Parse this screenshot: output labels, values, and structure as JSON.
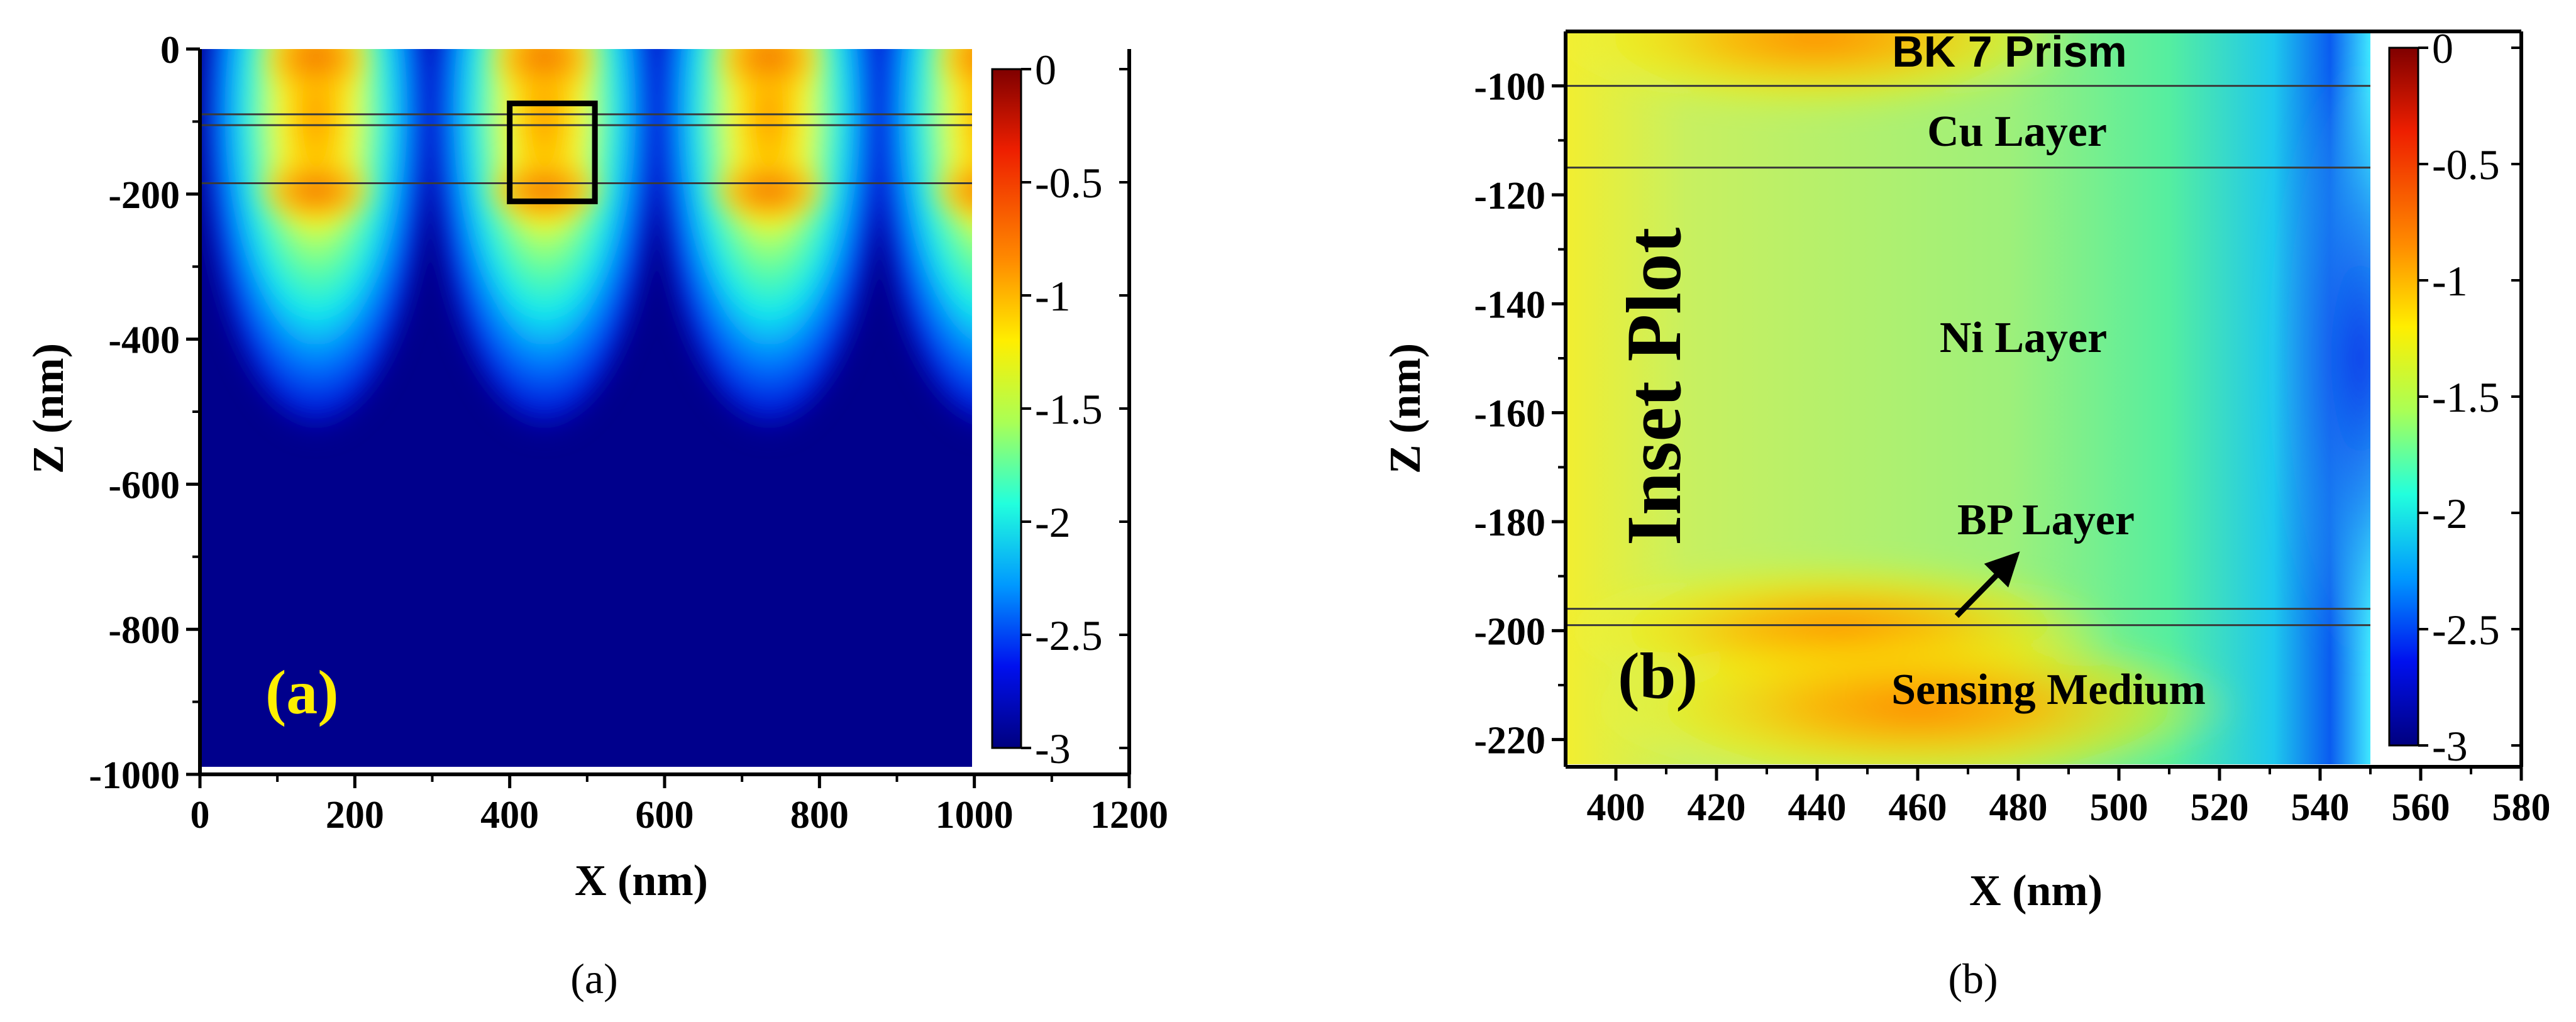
{
  "chart_data": [
    {
      "type": "heatmap",
      "panel": "a",
      "xlabel": "X (nm)",
      "ylabel": "Z (nm)",
      "xlim": [
        0,
        1200
      ],
      "ylim": [
        -1000,
        0
      ],
      "data_x_range": [
        0,
        1000
      ],
      "data_y_range": [
        -990,
        0
      ],
      "xticks": [
        "0",
        "200",
        "400",
        "600",
        "800",
        "1000",
        "1200"
      ],
      "xtick_values": [
        0,
        200,
        400,
        600,
        800,
        1000,
        1200
      ],
      "yticks": [
        "0",
        "-200",
        "-400",
        "-600",
        "-800",
        "-1000"
      ],
      "ytick_values": [
        0,
        -200,
        -400,
        -600,
        -800,
        -1000
      ],
      "colorbar": {
        "min": -3,
        "max": 0,
        "ticks": [
          "0",
          "-0.5",
          "-1",
          "-1.5",
          "-2",
          "-2.5",
          "-3"
        ],
        "tick_values": [
          0,
          -0.5,
          -1,
          -1.5,
          -2,
          -2.5,
          -3
        ]
      },
      "field_peaks_x": [
        150,
        445,
        735,
        1020
      ],
      "interface_lines_z": [
        -90,
        -105,
        -185
      ],
      "highlight_box": {
        "x": [
          400,
          510
        ],
        "z": [
          -210,
          -75
        ]
      },
      "panel_label": "(a)",
      "panel_label_color": "#ffee00",
      "caption": "(a)"
    },
    {
      "type": "heatmap",
      "panel": "b",
      "xlabel": "X (nm)",
      "ylabel": "Z (nm)",
      "xlim": [
        390,
        580
      ],
      "ylim": [
        -225,
        -90
      ],
      "data_x_range": [
        390,
        550
      ],
      "data_y_range": [
        -225,
        -90
      ],
      "xticks": [
        "400",
        "420",
        "440",
        "460",
        "480",
        "500",
        "520",
        "540",
        "560",
        "580"
      ],
      "xtick_values": [
        400,
        420,
        440,
        460,
        480,
        500,
        520,
        540,
        560,
        580
      ],
      "yticks": [
        "-100",
        "-120",
        "-140",
        "-160",
        "-180",
        "-200",
        "-220"
      ],
      "ytick_values": [
        -100,
        -120,
        -140,
        -160,
        -180,
        -200,
        -220
      ],
      "colorbar": {
        "min": -3,
        "max": 0,
        "ticks": [
          "0",
          "-0.5",
          "-1",
          "-1.5",
          "-2",
          "-2.5",
          "-3"
        ],
        "tick_values": [
          0,
          -0.5,
          -1,
          -1.5,
          -2,
          -2.5,
          -3
        ]
      },
      "interface_lines_z": [
        -100,
        -115,
        -196,
        -199
      ],
      "layer_labels": [
        "BK 7 Prism",
        "Cu Layer",
        "Ni Layer",
        "BP Layer",
        "Sensing Medium"
      ],
      "inset_label": "Inset Plot",
      "panel_label": "(b)",
      "caption": "(b)"
    }
  ]
}
